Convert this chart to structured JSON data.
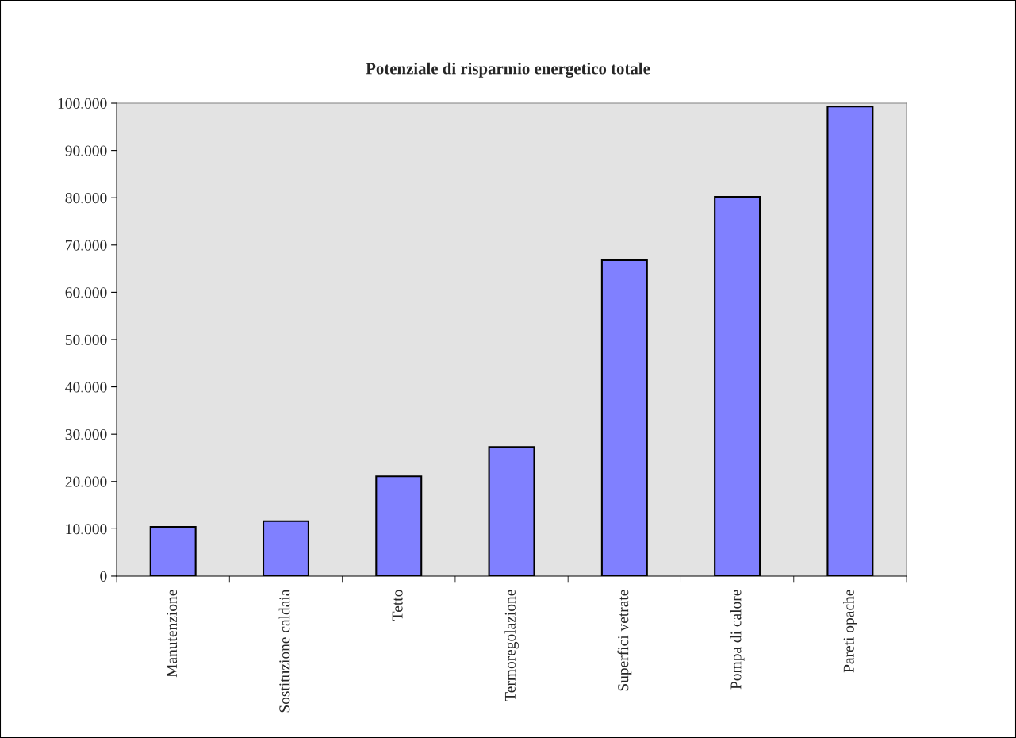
{
  "chart_data": {
    "type": "bar",
    "title": "Potenziale di risparmio energetico totale",
    "categories": [
      "Manutenzione",
      "Sostituzione caldaia",
      "Tetto",
      "Termoregolazione",
      "Superfici vetrate",
      "Pompa di calore",
      "Pareti opache"
    ],
    "values": [
      10400,
      11600,
      21100,
      27300,
      66800,
      80200,
      99300
    ],
    "color": "#8080ff",
    "ylim": [
      0,
      100000
    ],
    "yticks": [
      0,
      {
        "value": 10000,
        "label": "10.000"
      },
      {
        "value": 20000,
        "label": "20.000"
      },
      {
        "value": 30000,
        "label": "30.000"
      },
      {
        "value": 40000,
        "label": "40.000"
      },
      {
        "value": 50000,
        "label": "50.000"
      },
      {
        "value": 60000,
        "label": "60.000"
      },
      {
        "value": 70000,
        "label": "70.000"
      },
      {
        "value": 80000,
        "label": "80.000"
      },
      {
        "value": 90000,
        "label": "90.000"
      },
      {
        "value": 100000,
        "label": "100.000"
      }
    ],
    "grid": false,
    "legend": false
  }
}
